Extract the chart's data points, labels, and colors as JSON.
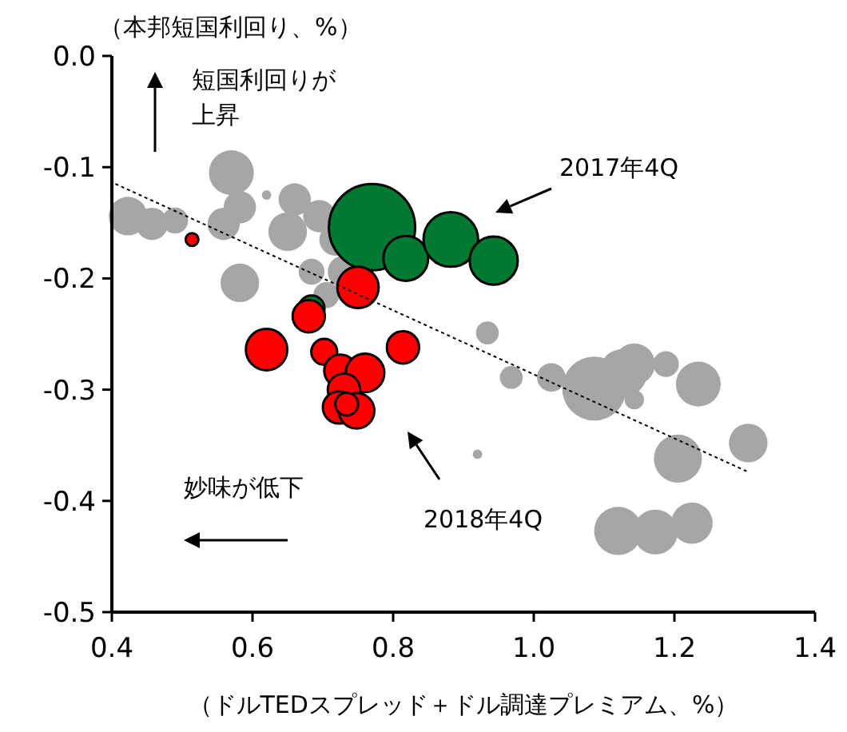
{
  "chart_data": {
    "type": "bubble",
    "xlabel": "（ドルTEDスプレッド＋ドル調達プレミアム、%）",
    "ylabel": "（本邦短国利回り、%）",
    "xlim": [
      0.4,
      1.4
    ],
    "xticks": [
      0.4,
      0.6,
      0.8,
      {
        "value": 1.0,
        "label": "1.0"
      },
      1.2,
      1.4
    ],
    "ylim": [
      -0.5,
      0.0
    ],
    "yticks": [
      {
        "value": 0,
        "label": "0.0"
      },
      -0.1,
      -0.2,
      -0.3,
      -0.4,
      -0.5
    ],
    "grid": false,
    "annotations": [
      "短国利回りが",
      "上昇",
      "妙味が低下",
      "2017年4Q",
      "2018年4Q"
    ],
    "series": [
      {
        "color": "#a6a6a6",
        "x": [
          0.423,
          0.457,
          0.49,
          0.57,
          0.582,
          0.559,
          0.62,
          0.66,
          0.695,
          0.65,
          0.718,
          0.582,
          0.73,
          0.684,
          0.705,
          0.934,
          0.968,
          1.025,
          1.086,
          1.127,
          1.143,
          1.143,
          1.188,
          1.234,
          1.205,
          1.305,
          1.12,
          1.173,
          1.225,
          0.92
        ],
        "values": [
          -0.144,
          -0.151,
          -0.148,
          -0.105,
          -0.136,
          -0.151,
          -0.125,
          -0.129,
          -0.144,
          -0.158,
          -0.165,
          -0.204,
          -0.194,
          -0.194,
          -0.215,
          -0.249,
          -0.289,
          -0.289,
          -0.299,
          -0.285,
          -0.277,
          -0.309,
          -0.277,
          -0.295,
          -0.362,
          -0.348,
          -0.427,
          -0.428,
          -0.42,
          -0.358
        ],
        "sizes": [
          0.2,
          0.14,
          0.09,
          0.27,
          0.14,
          0.14,
          0.012,
          0.14,
          0.14,
          0.2,
          0.14,
          0.2,
          0.14,
          0.09,
          0.09,
          0.07,
          0.07,
          0.11,
          0.55,
          0.31,
          0.23,
          0.05,
          0.09,
          0.27,
          0.31,
          0.2,
          0.31,
          0.27,
          0.23,
          0.012
        ]
      },
      {
        "color": "#007a33",
        "x": [
          0.77,
          0.818,
          0.882,
          0.943,
          0.684
        ],
        "values": [
          -0.154,
          -0.182,
          -0.165,
          -0.184,
          -0.227
        ],
        "sizes": [
          1,
          0.27,
          0.4,
          0.31,
          0.09
        ]
      },
      {
        "color": "#ff0000",
        "x": [
          0.514,
          0.75,
          0.68,
          0.62,
          0.702,
          0.814,
          0.725,
          0.76,
          0.73,
          0.723,
          0.748,
          0.734
        ],
        "values": [
          -0.165,
          -0.208,
          -0.234,
          -0.264,
          -0.266,
          -0.262,
          -0.283,
          -0.285,
          -0.3,
          -0.316,
          -0.319,
          -0.313
        ],
        "sizes": [
          0.022,
          0.23,
          0.14,
          0.23,
          0.09,
          0.14,
          0.14,
          0.2,
          0.14,
          0.14,
          0.17,
          0.07
        ]
      },
      {
        "type": "line",
        "color": "#000000",
        "line_style": "dotted",
        "marker": "none",
        "x": [
          0.405,
          1.305
        ],
        "values": [
          -0.115,
          -0.374
        ]
      }
    ]
  }
}
